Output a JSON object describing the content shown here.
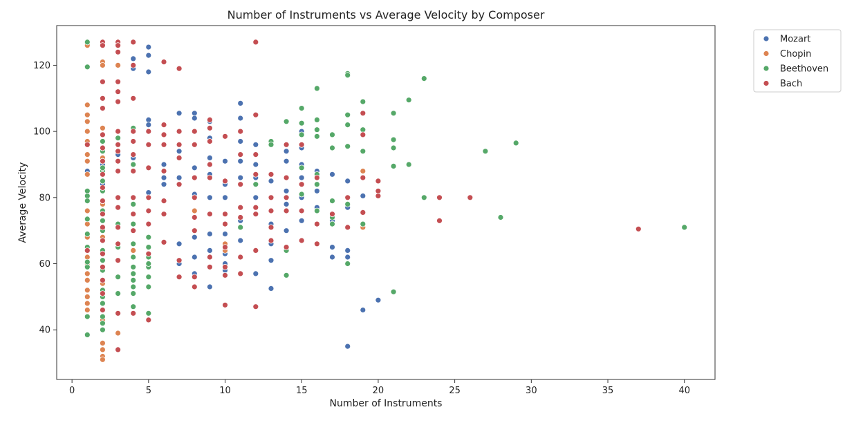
{
  "chart_data": {
    "type": "scatter",
    "title": "Number of Instruments vs Average Velocity by Composer",
    "xlabel": "Number of Instruments",
    "ylabel": "Average Velocity",
    "xlim": [
      -1,
      42
    ],
    "ylim": [
      25,
      132
    ],
    "xticks": [
      0,
      5,
      10,
      15,
      20,
      25,
      30,
      35,
      40
    ],
    "yticks": [
      40,
      60,
      80,
      100,
      120
    ],
    "grid": false,
    "legend_position": "outside-top-right",
    "series": [
      {
        "name": "Mozart",
        "color": "#4c72b0",
        "x": [
          1,
          1,
          2,
          2,
          2,
          3,
          3,
          4,
          4,
          4,
          4,
          4,
          5,
          5,
          5,
          5,
          5,
          5,
          6,
          6,
          6,
          7,
          7,
          7,
          7,
          7,
          7,
          8,
          8,
          8,
          8,
          8,
          8,
          8,
          9,
          9,
          9,
          9,
          9,
          9,
          9,
          9,
          10,
          10,
          10,
          10,
          10,
          10,
          10,
          10,
          11,
          11,
          11,
          11,
          11,
          11,
          11,
          12,
          12,
          12,
          12,
          12,
          12,
          13,
          13,
          13,
          13,
          13,
          13,
          14,
          14,
          14,
          14,
          14,
          15,
          15,
          15,
          15,
          15,
          15,
          16,
          16,
          16,
          17,
          17,
          17,
          17,
          18,
          18,
          18,
          18,
          18,
          19,
          19,
          20
        ],
        "y": [
          88,
          96,
          90,
          84,
          70,
          93,
          120,
          127,
          122,
          119,
          92,
          75,
          125.5,
          123,
          118,
          103.5,
          102,
          81.5,
          90,
          86,
          84,
          105.5,
          100,
          94,
          86,
          66,
          60,
          105.5,
          104,
          89,
          81,
          68,
          62,
          57,
          103,
          98,
          92,
          87,
          80,
          69,
          64,
          53,
          91,
          84,
          80,
          75,
          69,
          63,
          60,
          58,
          108.5,
          104,
          97,
          91,
          86,
          73,
          67,
          96,
          90,
          86,
          80,
          75,
          57,
          85,
          80,
          72,
          66,
          61,
          52.5,
          94,
          91,
          82,
          78,
          70,
          100,
          95,
          90,
          86,
          80,
          73,
          88,
          82,
          77,
          87,
          73,
          65,
          62,
          85,
          77,
          64,
          62,
          35,
          80.5,
          46,
          49
        ]
      },
      {
        "name": "Chopin",
        "color": "#dd8452",
        "x": [
          1,
          1,
          1,
          1,
          1,
          1,
          1,
          1,
          1,
          1,
          1,
          1,
          1,
          1,
          1,
          1,
          1,
          1,
          1,
          1,
          1,
          1,
          1,
          2,
          2,
          2,
          2,
          2,
          2,
          2,
          2,
          2,
          2,
          2,
          2,
          2,
          2,
          2,
          2,
          2,
          2,
          2,
          2,
          2,
          3,
          3,
          3,
          3,
          3,
          4,
          4,
          4,
          5,
          6,
          8,
          10,
          10,
          16,
          19,
          19
        ],
        "y": [
          126,
          108,
          105,
          103,
          100,
          97,
          93,
          91,
          87,
          82,
          76,
          72,
          68,
          65,
          62,
          60,
          57,
          55,
          52,
          50,
          48,
          46,
          44,
          121,
          120,
          101,
          97,
          92,
          88,
          83,
          78,
          73,
          68,
          63,
          58,
          54,
          50,
          46,
          43,
          40,
          36,
          34,
          32,
          31,
          126,
          120,
          45,
          39,
          56,
          75,
          70,
          64,
          43,
          99,
          76,
          66,
          64,
          66,
          88,
          71
        ]
      },
      {
        "name": "Beethoven",
        "color": "#55a868",
        "x": [
          1,
          1,
          1,
          1,
          1,
          1,
          1,
          1,
          1,
          1,
          1,
          1,
          2,
          2,
          2,
          2,
          2,
          2,
          2,
          2,
          2,
          2,
          2,
          2,
          2,
          2,
          2,
          2,
          2,
          2,
          2,
          2,
          2,
          2,
          2,
          3,
          3,
          3,
          3,
          3,
          3,
          3,
          3,
          3,
          4,
          4,
          4,
          4,
          4,
          4,
          4,
          4,
          4,
          4,
          4,
          4,
          5,
          5,
          5,
          5,
          5,
          5,
          5,
          5,
          11,
          12,
          12,
          13,
          13,
          14,
          14,
          14,
          15,
          15,
          15,
          15,
          15,
          15,
          15,
          16,
          16,
          16,
          16,
          16,
          16,
          16,
          17,
          17,
          17,
          17,
          17,
          18,
          18,
          18,
          18,
          18,
          18,
          18,
          18,
          19,
          19,
          19,
          19,
          21,
          21,
          21,
          21,
          21,
          22,
          22,
          23,
          23,
          27,
          28,
          29,
          40
        ],
        "y": [
          127,
          119.5,
          82,
          80.5,
          79,
          73.5,
          69,
          65,
          59,
          44,
          38.5,
          60.5,
          94,
          91,
          88,
          85,
          82,
          79,
          76,
          73,
          70,
          67,
          64,
          61,
          58,
          55,
          52,
          50,
          48,
          46,
          44,
          42,
          40,
          89,
          97,
          127,
          100,
          96,
          80,
          72,
          65,
          51,
          56,
          98,
          101,
          90,
          78,
          72,
          66,
          62,
          59,
          57,
          55,
          53,
          51,
          47,
          45,
          68,
          65,
          62,
          59,
          56,
          53,
          60,
          71,
          77,
          84,
          97,
          96,
          103,
          64,
          56.5,
          107,
          102.5,
          99,
          89,
          84,
          81,
          76,
          113,
          103.5,
          100.5,
          98.5,
          87,
          84,
          76,
          99,
          95,
          79,
          74,
          72,
          117.5,
          117,
          105,
          102,
          95.5,
          80,
          78,
          60,
          109,
          100.5,
          94,
          72,
          105.5,
          97.5,
          95,
          89.5,
          51.5,
          109.5,
          90,
          116,
          80,
          94,
          74,
          96.5,
          71
        ]
      },
      {
        "name": "Bach",
        "color": "#c44e52",
        "x": [
          1,
          1,
          2,
          2,
          2,
          2,
          2,
          2,
          2,
          2,
          2,
          2,
          2,
          2,
          2,
          2,
          2,
          2,
          2,
          2,
          2,
          3,
          3,
          3,
          3,
          3,
          3,
          3,
          3,
          3,
          3,
          3,
          3,
          3,
          3,
          3,
          3,
          3,
          3,
          4,
          4,
          4,
          4,
          4,
          4,
          4,
          4,
          4,
          4,
          4,
          5,
          5,
          5,
          5,
          5,
          5,
          5,
          5,
          6,
          6,
          6,
          6,
          6,
          6,
          6,
          6,
          7,
          7,
          7,
          7,
          7,
          7,
          7,
          8,
          8,
          8,
          8,
          8,
          8,
          8,
          8,
          9,
          9,
          9,
          9,
          9,
          9,
          9,
          9,
          10,
          10,
          10,
          10,
          10,
          10,
          10,
          10,
          11,
          11,
          11,
          11,
          11,
          11,
          11,
          12,
          12,
          12,
          12,
          12,
          12,
          12,
          12,
          13,
          13,
          13,
          13,
          13,
          14,
          14,
          14,
          14,
          14,
          15,
          15,
          15,
          15,
          16,
          16,
          16,
          17,
          18,
          18,
          19,
          19,
          19,
          19,
          20,
          20,
          20,
          24,
          24,
          26,
          37
        ],
        "y": [
          96,
          64,
          127,
          126,
          115,
          110,
          107,
          99,
          95,
          91,
          87,
          83,
          79,
          75,
          71,
          67,
          63,
          59,
          55,
          51,
          46,
          127,
          126,
          124,
          115,
          112,
          109,
          100,
          96,
          94,
          91,
          88,
          80,
          77,
          71,
          66,
          61,
          45,
          34,
          127,
          120,
          110,
          100,
          97,
          93,
          88,
          80,
          75,
          70,
          45,
          100,
          96,
          89,
          80,
          76,
          72,
          63,
          43,
          121,
          102,
          99,
          96,
          88,
          79,
          75,
          66.5,
          119,
          100,
          96,
          92,
          84,
          61,
          56,
          100,
          96,
          86,
          80,
          74,
          70,
          56,
          53,
          103.5,
          101,
          97,
          90,
          86,
          75,
          62,
          59,
          98.5,
          85,
          75,
          72,
          65,
          59,
          56.5,
          47.5,
          100,
          93,
          84,
          77,
          74,
          62,
          57,
          127,
          105,
          93,
          87,
          77,
          75,
          64,
          47,
          87,
          80,
          76,
          71,
          67,
          96,
          86,
          80,
          76,
          65,
          96,
          84,
          76,
          67,
          86,
          72,
          66,
          75,
          80,
          71,
          105.5,
          99,
          86,
          75.5,
          85,
          82,
          80.5,
          80,
          73,
          80,
          70.5
        ]
      }
    ]
  }
}
